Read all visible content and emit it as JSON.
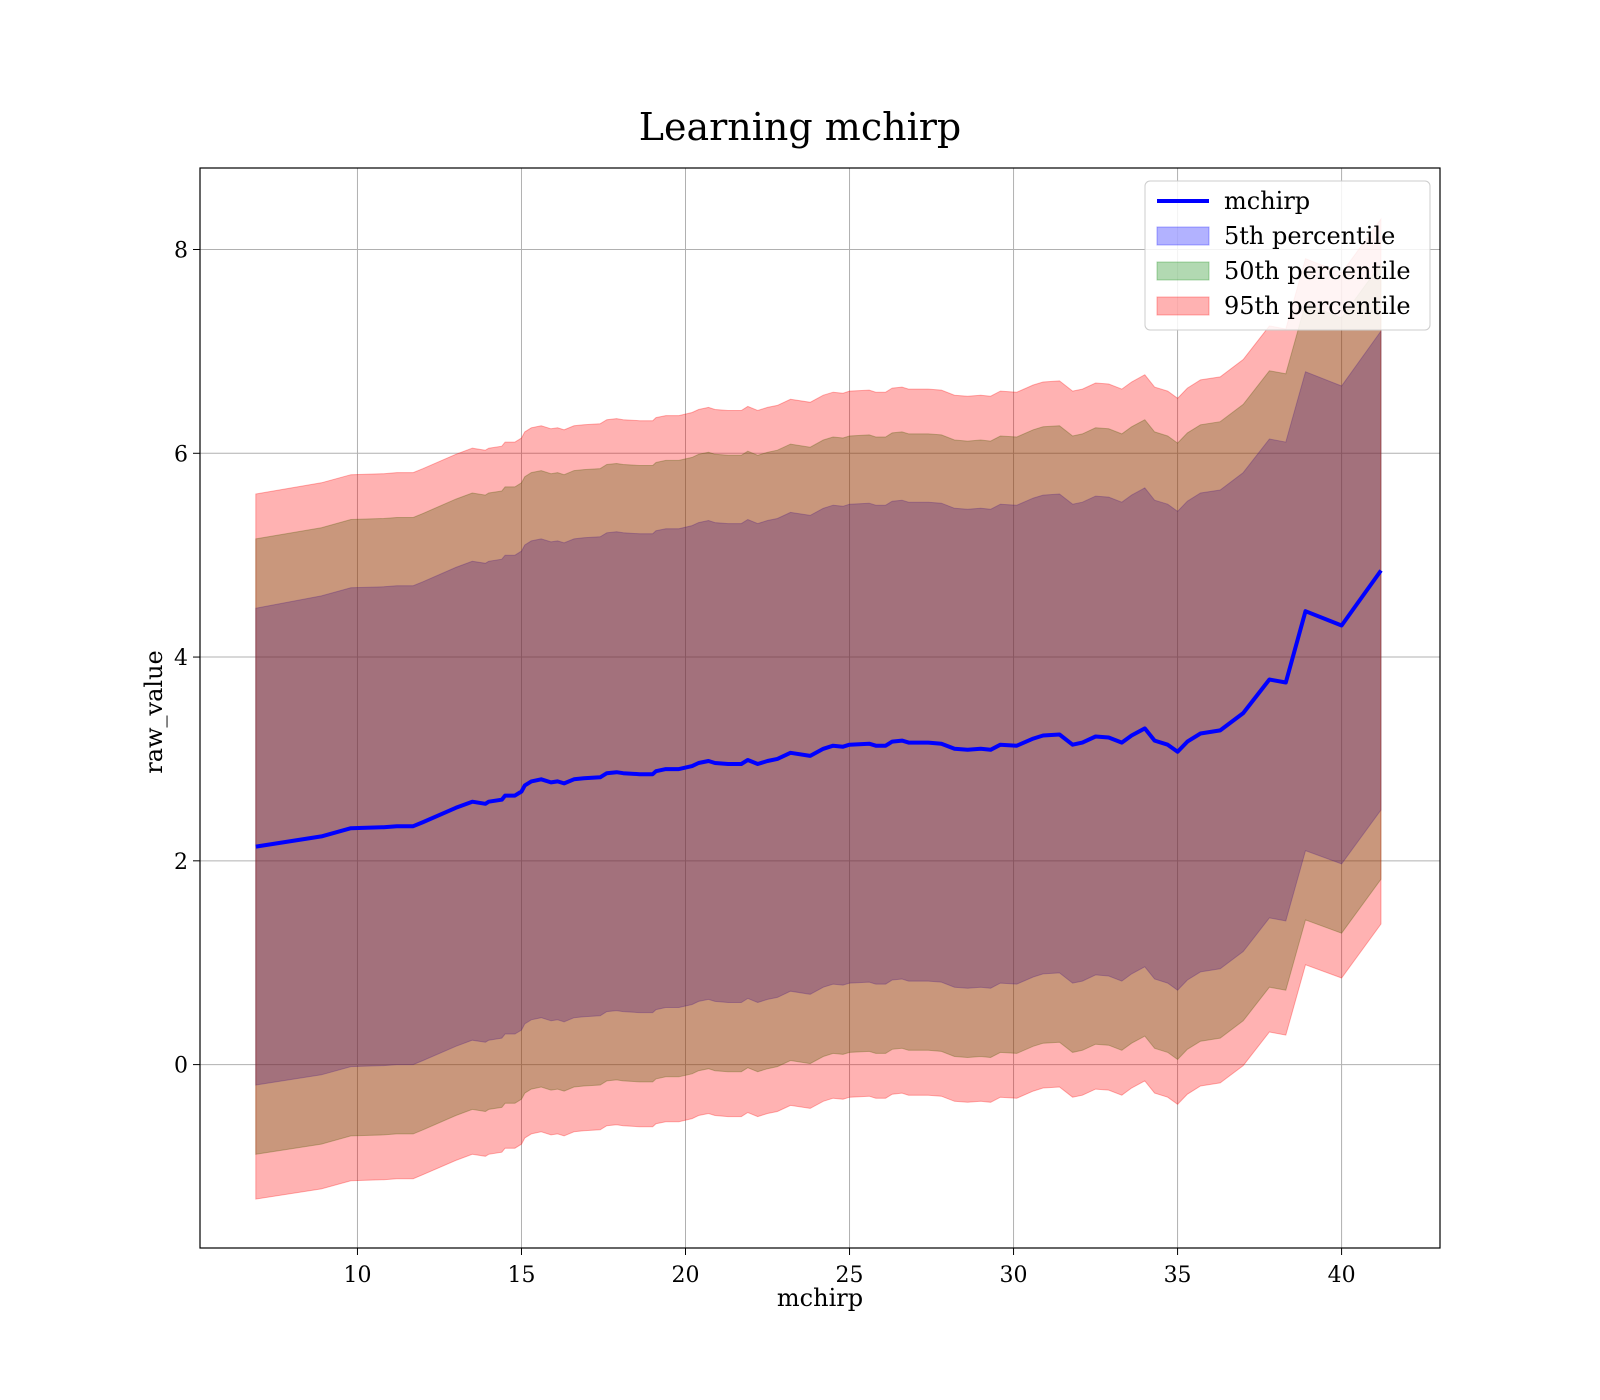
{
  "chart_data": {
    "type": "area",
    "title": "Learning mchirp",
    "xlabel": "mchirp",
    "ylabel": "raw_value",
    "xlim": [
      5.2,
      43.0
    ],
    "ylim": [
      -1.8,
      8.8
    ],
    "xticks": [
      10,
      15,
      20,
      25,
      30,
      35,
      40
    ],
    "yticks": [
      0,
      2,
      4,
      6,
      8
    ],
    "grid": true,
    "legend_position": "top-right",
    "x": [
      6.9,
      8.9,
      9.8,
      10.8,
      11.2,
      11.7,
      12.0,
      13.0,
      13.5,
      13.9,
      14.0,
      14.4,
      14.5,
      14.8,
      15.0,
      15.1,
      15.3,
      15.6,
      15.9,
      16.1,
      16.3,
      16.6,
      16.9,
      17.4,
      17.6,
      17.9,
      18.1,
      18.6,
      19.0,
      19.1,
      19.4,
      19.8,
      20.2,
      20.4,
      20.7,
      20.9,
      21.3,
      21.7,
      21.9,
      22.2,
      22.5,
      22.8,
      23.2,
      23.8,
      24.2,
      24.5,
      24.8,
      25.0,
      25.6,
      25.8,
      26.1,
      26.3,
      26.6,
      26.8,
      27.4,
      27.8,
      28.2,
      28.6,
      29.0,
      29.3,
      29.6,
      30.1,
      30.6,
      30.9,
      31.4,
      31.8,
      32.1,
      32.5,
      32.9,
      33.3,
      33.6,
      34.0,
      34.3,
      34.7,
      35.0,
      35.3,
      35.7,
      36.3,
      37.0,
      37.8,
      38.3,
      38.9,
      40.0,
      41.2
    ],
    "series": [
      {
        "name": "mchirp",
        "values": [
          2.14,
          2.24,
          2.32,
          2.33,
          2.34,
          2.34,
          2.38,
          2.52,
          2.58,
          2.56,
          2.58,
          2.6,
          2.64,
          2.64,
          2.68,
          2.74,
          2.78,
          2.8,
          2.77,
          2.78,
          2.76,
          2.8,
          2.81,
          2.82,
          2.86,
          2.87,
          2.86,
          2.85,
          2.85,
          2.88,
          2.9,
          2.9,
          2.93,
          2.96,
          2.98,
          2.96,
          2.95,
          2.95,
          2.99,
          2.95,
          2.98,
          3.0,
          3.06,
          3.03,
          3.1,
          3.13,
          3.12,
          3.14,
          3.15,
          3.13,
          3.13,
          3.17,
          3.18,
          3.16,
          3.16,
          3.15,
          3.1,
          3.09,
          3.1,
          3.09,
          3.14,
          3.13,
          3.2,
          3.23,
          3.24,
          3.14,
          3.16,
          3.22,
          3.21,
          3.16,
          3.23,
          3.3,
          3.18,
          3.14,
          3.07,
          3.17,
          3.25,
          3.28,
          3.45,
          3.78,
          3.75,
          4.45,
          4.31,
          4.85
        ]
      },
      {
        "name": "5th percentile",
        "upper": [
          4.48,
          4.6,
          4.68,
          4.69,
          4.7,
          4.7,
          4.74,
          4.88,
          4.94,
          4.92,
          4.94,
          4.96,
          5.0,
          5.0,
          5.04,
          5.1,
          5.14,
          5.16,
          5.13,
          5.14,
          5.12,
          5.16,
          5.17,
          5.18,
          5.22,
          5.23,
          5.22,
          5.21,
          5.21,
          5.24,
          5.26,
          5.26,
          5.29,
          5.32,
          5.34,
          5.32,
          5.31,
          5.31,
          5.35,
          5.31,
          5.34,
          5.36,
          5.42,
          5.39,
          5.46,
          5.49,
          5.48,
          5.5,
          5.51,
          5.49,
          5.49,
          5.53,
          5.54,
          5.52,
          5.52,
          5.51,
          5.46,
          5.45,
          5.46,
          5.45,
          5.5,
          5.49,
          5.56,
          5.59,
          5.6,
          5.5,
          5.52,
          5.58,
          5.57,
          5.52,
          5.59,
          5.66,
          5.54,
          5.5,
          5.43,
          5.53,
          5.61,
          5.64,
          5.81,
          6.14,
          6.11,
          6.8,
          6.66,
          7.2
        ],
        "lower": [
          -0.2,
          -0.1,
          -0.02,
          -0.01,
          0.0,
          0.0,
          0.04,
          0.18,
          0.24,
          0.22,
          0.24,
          0.26,
          0.3,
          0.3,
          0.34,
          0.4,
          0.44,
          0.46,
          0.43,
          0.44,
          0.42,
          0.46,
          0.47,
          0.48,
          0.52,
          0.53,
          0.52,
          0.51,
          0.51,
          0.54,
          0.56,
          0.56,
          0.59,
          0.62,
          0.64,
          0.62,
          0.61,
          0.61,
          0.65,
          0.61,
          0.64,
          0.66,
          0.72,
          0.69,
          0.76,
          0.79,
          0.78,
          0.8,
          0.81,
          0.79,
          0.79,
          0.83,
          0.84,
          0.82,
          0.82,
          0.81,
          0.76,
          0.75,
          0.76,
          0.75,
          0.8,
          0.79,
          0.86,
          0.89,
          0.9,
          0.8,
          0.82,
          0.88,
          0.87,
          0.82,
          0.89,
          0.96,
          0.84,
          0.8,
          0.73,
          0.83,
          0.91,
          0.94,
          1.11,
          1.44,
          1.41,
          2.1,
          1.97,
          2.5
        ]
      },
      {
        "name": "50th percentile",
        "upper": [
          5.16,
          5.27,
          5.35,
          5.36,
          5.37,
          5.37,
          5.41,
          5.55,
          5.61,
          5.59,
          5.61,
          5.63,
          5.67,
          5.67,
          5.71,
          5.77,
          5.81,
          5.83,
          5.8,
          5.81,
          5.79,
          5.83,
          5.84,
          5.85,
          5.89,
          5.9,
          5.89,
          5.88,
          5.88,
          5.91,
          5.93,
          5.93,
          5.96,
          5.99,
          6.01,
          5.99,
          5.98,
          5.98,
          6.02,
          5.98,
          6.01,
          6.03,
          6.09,
          6.06,
          6.13,
          6.16,
          6.15,
          6.17,
          6.18,
          6.16,
          6.16,
          6.2,
          6.21,
          6.19,
          6.19,
          6.18,
          6.13,
          6.12,
          6.13,
          6.12,
          6.17,
          6.16,
          6.23,
          6.26,
          6.27,
          6.17,
          6.19,
          6.25,
          6.24,
          6.19,
          6.26,
          6.33,
          6.21,
          6.17,
          6.1,
          6.2,
          6.28,
          6.31,
          6.48,
          6.81,
          6.78,
          7.47,
          7.33,
          7.86
        ],
        "lower": [
          -0.88,
          -0.78,
          -0.7,
          -0.69,
          -0.68,
          -0.68,
          -0.64,
          -0.5,
          -0.44,
          -0.46,
          -0.44,
          -0.42,
          -0.38,
          -0.38,
          -0.34,
          -0.28,
          -0.24,
          -0.22,
          -0.25,
          -0.24,
          -0.26,
          -0.22,
          -0.21,
          -0.2,
          -0.16,
          -0.15,
          -0.16,
          -0.17,
          -0.17,
          -0.14,
          -0.12,
          -0.12,
          -0.09,
          -0.06,
          -0.04,
          -0.06,
          -0.07,
          -0.07,
          -0.03,
          -0.07,
          -0.04,
          -0.02,
          0.04,
          0.01,
          0.08,
          0.11,
          0.1,
          0.12,
          0.13,
          0.11,
          0.11,
          0.15,
          0.16,
          0.14,
          0.14,
          0.13,
          0.08,
          0.07,
          0.08,
          0.07,
          0.12,
          0.11,
          0.18,
          0.21,
          0.22,
          0.12,
          0.14,
          0.2,
          0.19,
          0.14,
          0.21,
          0.28,
          0.16,
          0.12,
          0.05,
          0.15,
          0.23,
          0.26,
          0.43,
          0.76,
          0.73,
          1.42,
          1.29,
          1.82
        ]
      },
      {
        "name": "95th percentile",
        "upper": [
          5.6,
          5.71,
          5.79,
          5.8,
          5.81,
          5.81,
          5.85,
          5.99,
          6.05,
          6.03,
          6.05,
          6.07,
          6.11,
          6.11,
          6.15,
          6.21,
          6.25,
          6.27,
          6.24,
          6.25,
          6.23,
          6.27,
          6.28,
          6.29,
          6.33,
          6.34,
          6.33,
          6.32,
          6.32,
          6.35,
          6.37,
          6.37,
          6.4,
          6.43,
          6.45,
          6.43,
          6.42,
          6.42,
          6.46,
          6.42,
          6.45,
          6.47,
          6.53,
          6.5,
          6.57,
          6.6,
          6.59,
          6.61,
          6.62,
          6.6,
          6.6,
          6.64,
          6.65,
          6.63,
          6.63,
          6.62,
          6.57,
          6.56,
          6.57,
          6.56,
          6.61,
          6.6,
          6.67,
          6.7,
          6.71,
          6.61,
          6.63,
          6.69,
          6.68,
          6.63,
          6.7,
          6.77,
          6.65,
          6.61,
          6.54,
          6.64,
          6.72,
          6.75,
          6.92,
          7.25,
          7.22,
          7.91,
          7.77,
          8.3
        ],
        "lower": [
          -1.32,
          -1.22,
          -1.14,
          -1.13,
          -1.12,
          -1.12,
          -1.08,
          -0.94,
          -0.88,
          -0.9,
          -0.88,
          -0.86,
          -0.82,
          -0.82,
          -0.78,
          -0.72,
          -0.68,
          -0.66,
          -0.69,
          -0.68,
          -0.7,
          -0.66,
          -0.65,
          -0.64,
          -0.6,
          -0.59,
          -0.6,
          -0.61,
          -0.61,
          -0.58,
          -0.56,
          -0.56,
          -0.53,
          -0.5,
          -0.48,
          -0.5,
          -0.51,
          -0.51,
          -0.47,
          -0.51,
          -0.48,
          -0.46,
          -0.4,
          -0.43,
          -0.36,
          -0.33,
          -0.34,
          -0.32,
          -0.31,
          -0.33,
          -0.33,
          -0.29,
          -0.28,
          -0.3,
          -0.3,
          -0.31,
          -0.36,
          -0.37,
          -0.36,
          -0.37,
          -0.32,
          -0.33,
          -0.26,
          -0.23,
          -0.22,
          -0.32,
          -0.3,
          -0.24,
          -0.25,
          -0.3,
          -0.23,
          -0.16,
          -0.28,
          -0.32,
          -0.39,
          -0.29,
          -0.21,
          -0.18,
          -0.01,
          0.32,
          0.29,
          0.98,
          0.85,
          1.38
        ]
      }
    ],
    "colors": {
      "line": "#0000ff",
      "band_5th": "#0000ff",
      "band_50th": "#008000",
      "band_95th": "#ff0000",
      "band_opacity": 0.3
    }
  }
}
